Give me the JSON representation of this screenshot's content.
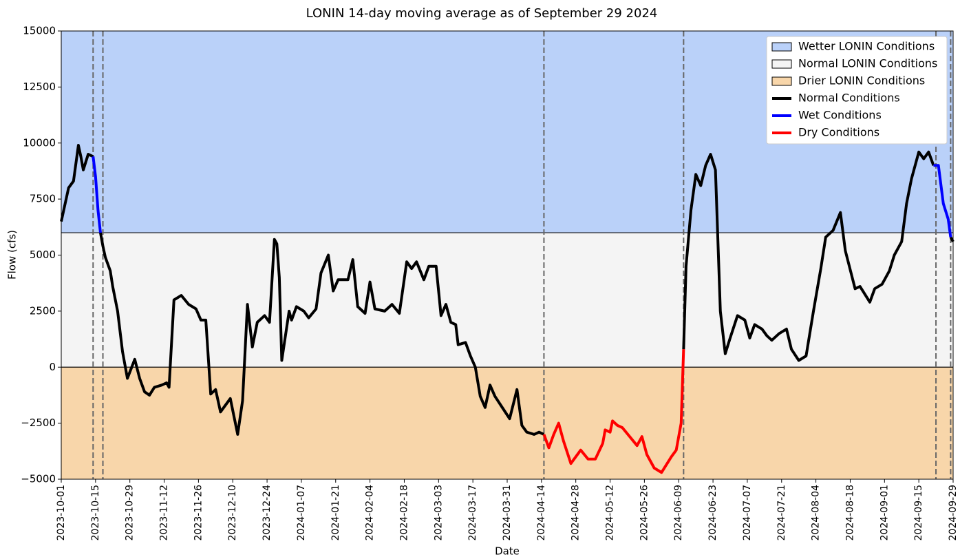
{
  "chart_data": {
    "type": "line",
    "title": "LONIN 14-day moving average as of September 29 2024",
    "x_label": "Date",
    "y_label": "Flow (cfs)",
    "xlim": [
      "2023-10-01",
      "2024-09-29"
    ],
    "ylim": [
      -5000,
      15000
    ],
    "xticks": [
      "2023-10-01",
      "2023-10-15",
      "2023-10-29",
      "2023-11-12",
      "2023-11-26",
      "2023-12-10",
      "2023-12-24",
      "2024-01-07",
      "2024-01-21",
      "2024-02-04",
      "2024-02-18",
      "2024-03-03",
      "2024-03-17",
      "2024-03-31",
      "2024-04-14",
      "2024-04-28",
      "2024-05-12",
      "2024-05-26",
      "2024-06-09",
      "2024-06-23",
      "2024-07-07",
      "2024-07-21",
      "2024-08-04",
      "2024-08-18",
      "2024-09-01",
      "2024-09-15",
      "2024-09-29"
    ],
    "yticks": [
      {
        "value": -5000,
        "label": "−5000"
      },
      {
        "value": -2500,
        "label": "−2500"
      },
      0,
      2500,
      5000,
      7500,
      10000,
      12500,
      15000
    ],
    "legend": "upper right",
    "bands": [
      {
        "name": "Wetter LONIN Conditions",
        "color": "#bad1f9",
        "range": [
          6000,
          15000
        ]
      },
      {
        "name": "Normal LONIN Conditions",
        "color": "#f4f4f4",
        "range": [
          0,
          6000
        ]
      },
      {
        "name": "Drier LONIN Conditions",
        "color": "#f8d6aa",
        "range": [
          -5000,
          0
        ]
      }
    ],
    "vlines": [
      "2023-10-14",
      "2023-10-18",
      "2024-04-15",
      "2024-06-11",
      "2024-09-22",
      "2024-09-28"
    ],
    "x": [
      "2023-10-01",
      "2023-10-03",
      "2023-10-04",
      "2023-10-06",
      "2023-10-08",
      "2023-10-09",
      "2023-10-10",
      "2023-10-12",
      "2023-10-14",
      "2023-10-15",
      "2023-10-16",
      "2023-10-17",
      "2023-10-18",
      "2023-10-19",
      "2023-10-21",
      "2023-10-22",
      "2023-10-24",
      "2023-10-26",
      "2023-10-28",
      "2023-10-31",
      "2023-11-02",
      "2023-11-04",
      "2023-11-06",
      "2023-11-08",
      "2023-11-11",
      "2023-11-13",
      "2023-11-14",
      "2023-11-16",
      "2023-11-19",
      "2023-11-22",
      "2023-11-25",
      "2023-11-27",
      "2023-11-29",
      "2023-12-01",
      "2023-12-03",
      "2023-12-05",
      "2023-12-09",
      "2023-12-12",
      "2023-12-14",
      "2023-12-16",
      "2023-12-18",
      "2023-12-20",
      "2023-12-23",
      "2023-12-25",
      "2023-12-27",
      "2023-12-28",
      "2023-12-29",
      "2023-12-30",
      "2024-01-02",
      "2024-01-03",
      "2024-01-05",
      "2024-01-08",
      "2024-01-10",
      "2024-01-13",
      "2024-01-15",
      "2024-01-18",
      "2024-01-20",
      "2024-01-22",
      "2024-01-26",
      "2024-01-28",
      "2024-01-30",
      "2024-02-02",
      "2024-02-04",
      "2024-02-06",
      "2024-02-10",
      "2024-02-13",
      "2024-02-16",
      "2024-02-19",
      "2024-02-21",
      "2024-02-23",
      "2024-02-26",
      "2024-02-28",
      "2024-03-02",
      "2024-03-04",
      "2024-03-06",
      "2024-03-08",
      "2024-03-10",
      "2024-03-11",
      "2024-03-14",
      "2024-03-16",
      "2024-03-18",
      "2024-03-20",
      "2024-03-22",
      "2024-03-24",
      "2024-03-26",
      "2024-03-29",
      "2024-04-01",
      "2024-04-04",
      "2024-04-06",
      "2024-04-08",
      "2024-04-11",
      "2024-04-13",
      "2024-04-15",
      "2024-04-17",
      "2024-04-19",
      "2024-04-21",
      "2024-04-23",
      "2024-04-26",
      "2024-04-28",
      "2024-04-30",
      "2024-05-03",
      "2024-05-06",
      "2024-05-09",
      "2024-05-10",
      "2024-05-12",
      "2024-05-13",
      "2024-05-15",
      "2024-05-17",
      "2024-05-20",
      "2024-05-23",
      "2024-05-25",
      "2024-05-27",
      "2024-05-30",
      "2024-06-02",
      "2024-06-06",
      "2024-06-08",
      "2024-06-10",
      "2024-06-11",
      "2024-06-12",
      "2024-06-14",
      "2024-06-16",
      "2024-06-18",
      "2024-06-20",
      "2024-06-22",
      "2024-06-24",
      "2024-06-26",
      "2024-06-28",
      "2024-06-30",
      "2024-07-03",
      "2024-07-06",
      "2024-07-08",
      "2024-07-10",
      "2024-07-13",
      "2024-07-15",
      "2024-07-17",
      "2024-07-20",
      "2024-07-23",
      "2024-07-25",
      "2024-07-28",
      "2024-07-31",
      "2024-08-03",
      "2024-08-06",
      "2024-08-08",
      "2024-08-11",
      "2024-08-14",
      "2024-08-16",
      "2024-08-20",
      "2024-08-22",
      "2024-08-26",
      "2024-08-28",
      "2024-08-31",
      "2024-09-03",
      "2024-09-05",
      "2024-09-08",
      "2024-09-10",
      "2024-09-12",
      "2024-09-15",
      "2024-09-17",
      "2024-09-19",
      "2024-09-21",
      "2024-09-23",
      "2024-09-25",
      "2024-09-27",
      "2024-09-28",
      "2024-09-29"
    ],
    "series": [
      {
        "name": "Normal Conditions",
        "color": "#000000",
        "values": [
          6500,
          7500,
          8000,
          8300,
          9900,
          9400,
          8800,
          9500,
          9400,
          null,
          null,
          6000,
          5400,
          4900,
          4300,
          3600,
          2500,
          700,
          -500,
          350,
          -500,
          -1100,
          -1250,
          -900,
          -800,
          -700,
          -900,
          3000,
          3200,
          2800,
          2600,
          2100,
          2100,
          -1200,
          -1000,
          -2000,
          -1400,
          -3000,
          -1500,
          2800,
          900,
          2000,
          2300,
          2000,
          5700,
          5500,
          4000,
          300,
          2500,
          2100,
          2700,
          2500,
          2200,
          2600,
          4200,
          5000,
          3400,
          3900,
          3900,
          4800,
          2700,
          2400,
          3800,
          2600,
          2500,
          2800,
          2400,
          4700,
          4400,
          4700,
          3900,
          4500,
          4500,
          2300,
          2800,
          2000,
          1900,
          1000,
          1100,
          500,
          0,
          -1300,
          -1800,
          -800,
          -1300,
          -1800,
          -2300,
          -1000,
          -2600,
          -2900,
          -3000,
          -2900,
          -3000,
          null,
          null,
          null,
          null,
          null,
          null,
          null,
          null,
          null,
          null,
          null,
          null,
          null,
          null,
          null,
          null,
          null,
          null,
          null,
          null,
          null,
          null,
          null,
          null,
          800,
          4500,
          7000,
          8600,
          8100,
          9000,
          9500,
          8800,
          2500,
          600,
          1300,
          2300,
          2100,
          1300,
          1900,
          1700,
          1400,
          1200,
          1500,
          1700,
          800,
          300,
          500,
          2500,
          4400,
          5800,
          6100,
          6900,
          5200,
          3500,
          3600,
          2900,
          3500,
          3700,
          4300,
          5000,
          5600,
          7300,
          8400,
          9600,
          9300,
          9600,
          9000,
          null,
          null,
          null,
          5800,
          5600
        ]
      },
      {
        "name": "Wet Conditions",
        "color": "#0000ff",
        "values": [
          null,
          null,
          null,
          null,
          null,
          null,
          null,
          null,
          9400,
          8500,
          7000,
          6000,
          null,
          null,
          null,
          null,
          null,
          null,
          null,
          null,
          null,
          null,
          null,
          null,
          null,
          null,
          null,
          null,
          null,
          null,
          null,
          null,
          null,
          null,
          null,
          null,
          null,
          null,
          null,
          null,
          null,
          null,
          null,
          null,
          null,
          null,
          null,
          null,
          null,
          null,
          null,
          null,
          null,
          null,
          null,
          null,
          null,
          null,
          null,
          null,
          null,
          null,
          null,
          null,
          null,
          null,
          null,
          null,
          null,
          null,
          null,
          null,
          null,
          null,
          null,
          null,
          null,
          null,
          null,
          null,
          null,
          null,
          null,
          null,
          null,
          null,
          null,
          null,
          null,
          null,
          null,
          null,
          null,
          null,
          null,
          null,
          null,
          null,
          null,
          null,
          null,
          null,
          null,
          null,
          null,
          null,
          null,
          null,
          null,
          null,
          null,
          null,
          null,
          null,
          null,
          null,
          null,
          null,
          null,
          null,
          null,
          null,
          null,
          null,
          null,
          null,
          null,
          null,
          null,
          null,
          null,
          null,
          null,
          null,
          null,
          null,
          null,
          null,
          null,
          null,
          null,
          null,
          null,
          null,
          null,
          null,
          null,
          null,
          null,
          null,
          null,
          null,
          null,
          null,
          null,
          null,
          null,
          null,
          null,
          9000,
          9000,
          7300,
          6600,
          5800,
          null
        ]
      },
      {
        "name": "Dry Conditions",
        "color": "#ff0000",
        "values": [
          null,
          null,
          null,
          null,
          null,
          null,
          null,
          null,
          null,
          null,
          null,
          null,
          null,
          null,
          null,
          null,
          null,
          null,
          null,
          null,
          null,
          null,
          null,
          null,
          null,
          null,
          null,
          null,
          null,
          null,
          null,
          null,
          null,
          null,
          null,
          null,
          null,
          null,
          null,
          null,
          null,
          null,
          null,
          null,
          null,
          null,
          null,
          null,
          null,
          null,
          null,
          null,
          null,
          null,
          null,
          null,
          null,
          null,
          null,
          null,
          null,
          null,
          null,
          null,
          null,
          null,
          null,
          null,
          null,
          null,
          null,
          null,
          null,
          null,
          null,
          null,
          null,
          null,
          null,
          null,
          null,
          null,
          null,
          null,
          null,
          null,
          null,
          null,
          null,
          null,
          null,
          null,
          -3000,
          -3600,
          -3000,
          -2500,
          -3300,
          -4300,
          -4000,
          -3700,
          -4100,
          -4100,
          -3400,
          -2800,
          -2900,
          -2400,
          -2600,
          -2700,
          -3100,
          -3500,
          -3100,
          -3900,
          -4500,
          -4700,
          -4000,
          -3700,
          -2500,
          800,
          null,
          null,
          null,
          null,
          null,
          null,
          null,
          null,
          null,
          null,
          null,
          null,
          null,
          null,
          null,
          null,
          null,
          null,
          null,
          null,
          null,
          null,
          null,
          null,
          null,
          null,
          null,
          null,
          null,
          null,
          null,
          null,
          null,
          null,
          null,
          null,
          null,
          null,
          null,
          null,
          null,
          null,
          null,
          null,
          null,
          null,
          null
        ]
      }
    ]
  }
}
